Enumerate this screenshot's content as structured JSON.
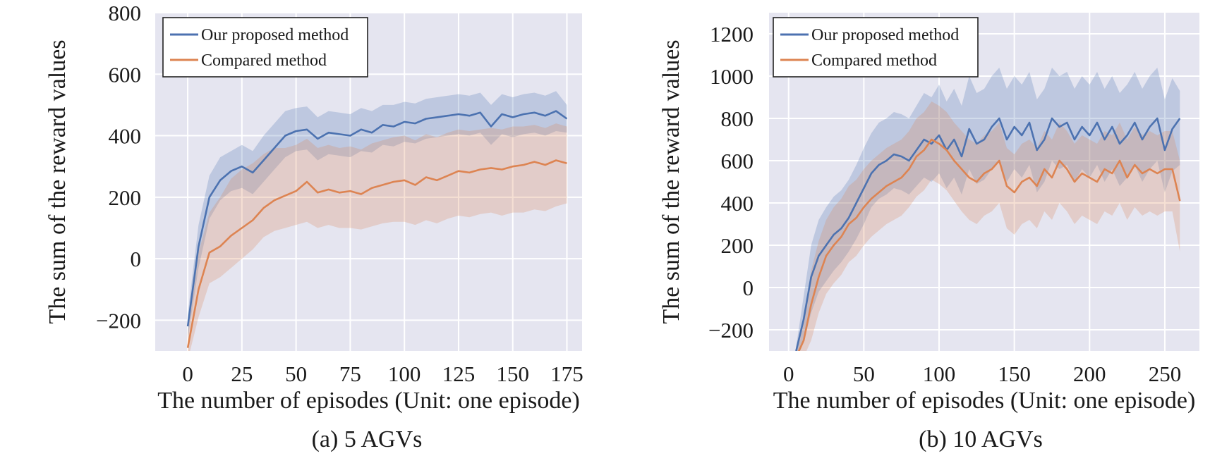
{
  "chart_data": [
    {
      "type": "line",
      "caption": "(a) 5 AGVs",
      "xlabel": "The number of episodes (Unit: one episode)",
      "ylabel": "The sum of the reward values",
      "xlim": [
        -15,
        182
      ],
      "ylim": [
        -300,
        800
      ],
      "xticks": [
        0,
        25,
        50,
        75,
        100,
        125,
        150,
        175
      ],
      "yticks": [
        -200,
        0,
        200,
        400,
        600,
        800
      ],
      "ytick_labels": [
        "−200",
        "0",
        "200",
        "400",
        "600",
        "800"
      ],
      "grid": true,
      "legend_position": "top-left",
      "series": [
        {
          "name": "Our proposed method",
          "color": "#4c72b0",
          "x": [
            0,
            5,
            10,
            15,
            20,
            25,
            30,
            35,
            40,
            45,
            50,
            55,
            60,
            65,
            70,
            75,
            80,
            85,
            90,
            95,
            100,
            105,
            110,
            115,
            120,
            125,
            130,
            135,
            140,
            145,
            150,
            155,
            160,
            165,
            170,
            175
          ],
          "values": [
            -220,
            40,
            200,
            255,
            285,
            300,
            280,
            320,
            360,
            400,
            415,
            420,
            390,
            410,
            405,
            400,
            420,
            410,
            435,
            430,
            445,
            440,
            455,
            460,
            465,
            470,
            465,
            475,
            430,
            470,
            460,
            470,
            475,
            465,
            480,
            455
          ],
          "lower": [
            -260,
            -30,
            130,
            190,
            220,
            230,
            210,
            250,
            290,
            330,
            350,
            355,
            320,
            340,
            335,
            330,
            350,
            345,
            370,
            365,
            380,
            375,
            390,
            395,
            400,
            405,
            400,
            410,
            370,
            405,
            395,
            405,
            410,
            400,
            415,
            410
          ],
          "upper": [
            -180,
            110,
            270,
            330,
            350,
            370,
            350,
            400,
            440,
            480,
            490,
            495,
            460,
            480,
            475,
            470,
            490,
            480,
            500,
            500,
            510,
            505,
            520,
            525,
            530,
            535,
            530,
            540,
            500,
            535,
            525,
            535,
            540,
            530,
            545,
            500
          ]
        },
        {
          "name": "Compared method",
          "color": "#dd8452",
          "x": [
            0,
            5,
            10,
            15,
            20,
            25,
            30,
            35,
            40,
            45,
            50,
            55,
            60,
            65,
            70,
            75,
            80,
            85,
            90,
            95,
            100,
            105,
            110,
            115,
            120,
            125,
            130,
            135,
            140,
            145,
            150,
            155,
            160,
            165,
            170,
            175
          ],
          "values": [
            -290,
            -100,
            20,
            40,
            75,
            100,
            125,
            165,
            190,
            205,
            220,
            250,
            215,
            225,
            215,
            220,
            210,
            230,
            240,
            250,
            255,
            240,
            265,
            255,
            270,
            285,
            280,
            290,
            295,
            290,
            300,
            305,
            315,
            305,
            320,
            310
          ],
          "lower": [
            -330,
            -190,
            -80,
            -60,
            -30,
            0,
            30,
            70,
            90,
            100,
            110,
            120,
            100,
            110,
            100,
            100,
            95,
            105,
            115,
            120,
            120,
            110,
            125,
            115,
            130,
            140,
            135,
            145,
            150,
            140,
            150,
            150,
            160,
            155,
            170,
            180
          ],
          "upper": [
            -240,
            20,
            150,
            200,
            260,
            290,
            310,
            340,
            360,
            360,
            370,
            390,
            360,
            370,
            360,
            365,
            355,
            375,
            385,
            395,
            400,
            385,
            405,
            395,
            410,
            420,
            415,
            420,
            425,
            420,
            430,
            430,
            435,
            425,
            440,
            430
          ]
        }
      ]
    },
    {
      "type": "line",
      "caption": "(b) 10 AGVs",
      "xlabel": "The number of episodes (Unit: one episode)",
      "ylabel": "The sum of the reward values",
      "xlim": [
        -13,
        273
      ],
      "ylim": [
        -300,
        1300
      ],
      "xticks": [
        0,
        50,
        100,
        150,
        200,
        250
      ],
      "yticks": [
        -200,
        0,
        200,
        400,
        600,
        800,
        1000,
        1200
      ],
      "ytick_labels": [
        "−200",
        "0",
        "200",
        "400",
        "600",
        "800",
        "1000",
        "1200"
      ],
      "grid": true,
      "legend_position": "top-left",
      "series": [
        {
          "name": "Our proposed method",
          "color": "#4c72b0",
          "x": [
            5,
            10,
            15,
            20,
            25,
            30,
            35,
            40,
            45,
            50,
            55,
            60,
            65,
            70,
            75,
            80,
            85,
            90,
            95,
            100,
            105,
            110,
            115,
            120,
            125,
            130,
            135,
            140,
            145,
            150,
            155,
            160,
            165,
            170,
            175,
            180,
            185,
            190,
            195,
            200,
            205,
            210,
            215,
            220,
            225,
            230,
            235,
            240,
            245,
            250,
            255,
            260
          ],
          "values": [
            -300,
            -150,
            50,
            150,
            200,
            250,
            280,
            330,
            400,
            470,
            540,
            580,
            600,
            630,
            620,
            600,
            650,
            700,
            680,
            720,
            650,
            700,
            620,
            750,
            680,
            700,
            760,
            800,
            700,
            760,
            720,
            780,
            650,
            700,
            800,
            760,
            780,
            700,
            760,
            720,
            780,
            700,
            760,
            680,
            720,
            780,
            700,
            760,
            800,
            650,
            750,
            800
          ],
          "lower": [
            -330,
            -260,
            -120,
            -20,
            30,
            80,
            120,
            170,
            230,
            300,
            380,
            420,
            440,
            470,
            460,
            440,
            480,
            520,
            500,
            540,
            470,
            520,
            440,
            560,
            490,
            510,
            560,
            600,
            500,
            560,
            520,
            580,
            450,
            500,
            600,
            560,
            580,
            500,
            560,
            520,
            580,
            500,
            560,
            480,
            520,
            580,
            500,
            560,
            600,
            450,
            550,
            580
          ],
          "upper": [
            -280,
            -40,
            200,
            320,
            380,
            430,
            460,
            510,
            580,
            660,
            730,
            780,
            800,
            830,
            820,
            800,
            860,
            920,
            900,
            960,
            880,
            940,
            860,
            1000,
            920,
            940,
            1000,
            1040,
            940,
            1000,
            960,
            1020,
            890,
            940,
            1040,
            1000,
            1020,
            940,
            1000,
            960,
            1020,
            940,
            1000,
            920,
            960,
            1020,
            940,
            1000,
            1040,
            890,
            990,
            930
          ]
        },
        {
          "name": "Compared method",
          "color": "#dd8452",
          "x": [
            5,
            10,
            15,
            20,
            25,
            30,
            35,
            40,
            45,
            50,
            55,
            60,
            65,
            70,
            75,
            80,
            85,
            90,
            95,
            100,
            105,
            110,
            115,
            120,
            125,
            130,
            135,
            140,
            145,
            150,
            155,
            160,
            165,
            170,
            175,
            180,
            185,
            190,
            195,
            200,
            205,
            210,
            215,
            220,
            225,
            230,
            235,
            240,
            245,
            250,
            255,
            260
          ],
          "values": [
            -330,
            -250,
            -80,
            50,
            150,
            200,
            240,
            300,
            330,
            380,
            420,
            450,
            480,
            500,
            520,
            560,
            620,
            650,
            700,
            680,
            650,
            600,
            560,
            520,
            500,
            540,
            560,
            600,
            480,
            450,
            500,
            520,
            480,
            560,
            520,
            600,
            560,
            500,
            540,
            520,
            500,
            560,
            540,
            600,
            520,
            580,
            540,
            560,
            540,
            560,
            560,
            410
          ],
          "lower": [
            -340,
            -330,
            -250,
            -120,
            -30,
            20,
            60,
            120,
            150,
            200,
            240,
            270,
            300,
            320,
            340,
            380,
            430,
            460,
            510,
            490,
            460,
            410,
            360,
            320,
            300,
            340,
            360,
            400,
            280,
            250,
            300,
            320,
            280,
            360,
            320,
            400,
            360,
            300,
            340,
            320,
            300,
            360,
            340,
            400,
            320,
            380,
            340,
            360,
            340,
            360,
            360,
            170
          ],
          "upper": [
            -300,
            -160,
            80,
            220,
            320,
            380,
            420,
            480,
            510,
            560,
            600,
            630,
            660,
            680,
            700,
            740,
            800,
            830,
            880,
            860,
            830,
            780,
            740,
            700,
            680,
            720,
            740,
            780,
            660,
            630,
            680,
            700,
            660,
            740,
            700,
            780,
            740,
            680,
            720,
            700,
            680,
            740,
            720,
            780,
            700,
            760,
            720,
            740,
            720,
            740,
            740,
            600
          ]
        }
      ]
    }
  ]
}
